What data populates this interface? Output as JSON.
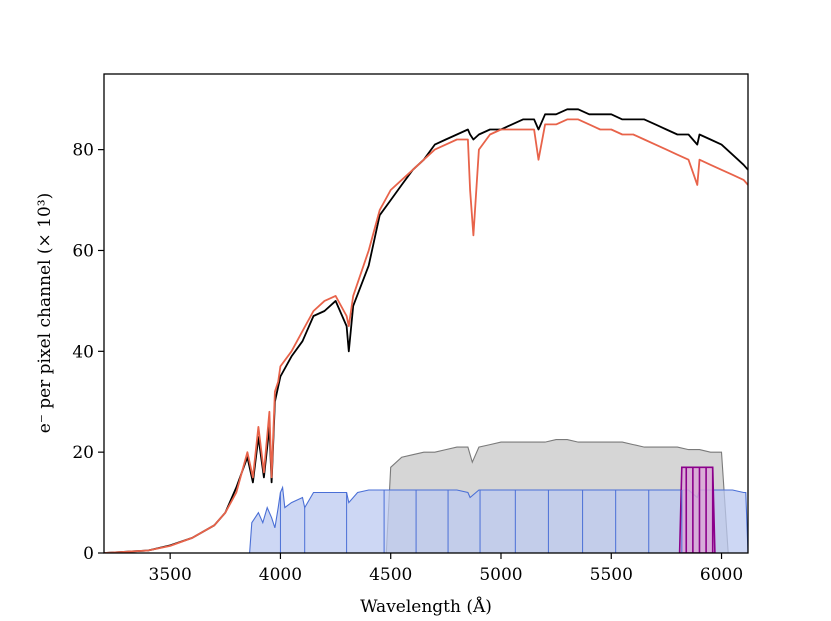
{
  "chart_data": {
    "type": "line",
    "xlabel": "Wavelength (Å)",
    "ylabel": "e⁻ per pixel channel (× 10³)",
    "xlim": [
      3200,
      6120
    ],
    "ylim": [
      0,
      95
    ],
    "x_ticks": [
      3500,
      4000,
      4500,
      5000,
      5500,
      6000
    ],
    "y_ticks": [
      0,
      20,
      40,
      60,
      80
    ],
    "grid": false,
    "colors": {
      "black_line": "#000000",
      "red_line": "#e8634a",
      "blue_fill": "#bcc9f0",
      "blue_edge": "#4a6fd6",
      "gray_fill": "#d2d2d2",
      "gray_edge": "#7a7a7a",
      "purple_fill": "#d9a6d6",
      "purple_edge": "#8b008b"
    },
    "series": [
      {
        "key": "black_line",
        "x": [
          3200,
          3400,
          3500,
          3600,
          3700,
          3750,
          3800,
          3850,
          3875,
          3900,
          3925,
          3950,
          3960,
          3975,
          3990,
          4000,
          4050,
          4100,
          4150,
          4200,
          4250,
          4300,
          4310,
          4330,
          4400,
          4450,
          4500,
          4550,
          4600,
          4650,
          4700,
          4750,
          4800,
          4850,
          4860,
          4875,
          4900,
          4950,
          5000,
          5050,
          5100,
          5150,
          5170,
          5200,
          5250,
          5300,
          5350,
          5400,
          5450,
          5500,
          5550,
          5600,
          5650,
          5700,
          5750,
          5800,
          5850,
          5890,
          5900,
          5950,
          6000,
          6050,
          6100,
          6120
        ],
        "y": [
          0,
          0.5,
          1.5,
          3,
          5.5,
          8,
          13,
          19,
          14,
          23,
          15,
          25,
          14,
          30,
          33,
          35,
          39,
          42,
          47,
          48,
          50,
          45,
          40,
          49,
          57,
          67,
          70,
          73,
          76,
          78,
          81,
          82,
          83,
          84,
          83,
          82,
          83,
          84,
          84,
          85,
          86,
          86,
          84,
          87,
          87,
          88,
          88,
          87,
          87,
          87,
          86,
          86,
          86,
          85,
          84,
          83,
          83,
          81,
          83,
          82,
          81,
          79,
          77,
          76
        ]
      },
      {
        "key": "red_line",
        "x": [
          3200,
          3400,
          3500,
          3600,
          3700,
          3750,
          3800,
          3850,
          3875,
          3900,
          3925,
          3950,
          3960,
          3975,
          3990,
          4000,
          4050,
          4100,
          4150,
          4200,
          4250,
          4300,
          4310,
          4330,
          4400,
          4450,
          4500,
          4550,
          4600,
          4650,
          4700,
          4750,
          4800,
          4850,
          4860,
          4875,
          4900,
          4950,
          5000,
          5050,
          5100,
          5150,
          5170,
          5200,
          5250,
          5300,
          5350,
          5400,
          5450,
          5500,
          5550,
          5600,
          5650,
          5700,
          5750,
          5800,
          5850,
          5890,
          5900,
          5950,
          6000,
          6050,
          6100,
          6120
        ],
        "y": [
          0,
          0.5,
          1.4,
          3,
          5.5,
          8,
          12,
          20,
          15,
          25,
          16,
          28,
          15,
          32,
          34,
          37,
          40,
          44,
          48,
          50,
          51,
          47,
          45,
          51,
          60,
          68,
          72,
          74,
          76,
          78,
          80,
          81,
          82,
          82,
          72,
          63,
          80,
          83,
          84,
          84,
          84,
          84,
          78,
          85,
          85,
          86,
          86,
          85,
          84,
          84,
          83,
          83,
          82,
          81,
          80,
          79,
          78,
          73,
          78,
          77,
          76,
          75,
          74,
          73
        ]
      }
    ],
    "fills": [
      {
        "key": "gray",
        "x": [
          4480,
          4500,
          4550,
          4600,
          4650,
          4700,
          4750,
          4800,
          4850,
          4870,
          4900,
          4950,
          5000,
          5050,
          5100,
          5150,
          5200,
          5250,
          5300,
          5350,
          5400,
          5450,
          5500,
          5550,
          5600,
          5650,
          5700,
          5750,
          5800,
          5850,
          5900,
          5950,
          6000,
          6030
        ],
        "y": [
          0,
          17,
          19,
          19.5,
          20,
          20,
          20.5,
          21,
          21,
          18,
          21,
          21.5,
          22,
          22,
          22,
          22,
          22,
          22.5,
          22.5,
          22,
          22,
          22,
          22,
          22,
          21.5,
          21,
          21,
          21,
          21,
          20.5,
          20.5,
          20,
          20,
          0
        ]
      },
      {
        "key": "blue",
        "x": [
          3860,
          3870,
          3900,
          3920,
          3940,
          3960,
          3975,
          3990,
          4000,
          4010,
          4020,
          4050,
          4100,
          4110,
          4150,
          4200,
          4250,
          4300,
          4310,
          4350,
          4400,
          4450,
          4500,
          4550,
          4600,
          4650,
          4700,
          4750,
          4800,
          4850,
          4860,
          4900,
          4950,
          5000,
          5050,
          5100,
          5150,
          5200,
          5250,
          5300,
          5350,
          5400,
          5450,
          5500,
          5550,
          5600,
          5650,
          5700,
          5750,
          5800,
          5850,
          5890,
          5900,
          5950,
          6000,
          6050,
          6100,
          6110,
          6120
        ],
        "y": [
          0,
          6,
          8,
          6,
          9,
          7,
          5,
          9,
          12,
          13,
          9,
          10,
          11,
          9,
          12,
          12,
          12,
          12,
          10,
          12,
          12.5,
          12.5,
          12.5,
          12.5,
          12.5,
          12.5,
          12.5,
          12.5,
          12.5,
          12,
          11,
          12.5,
          12.5,
          12.5,
          12.5,
          12.5,
          12.5,
          12.5,
          12.5,
          12.5,
          12.5,
          12.5,
          12.5,
          12.5,
          12.5,
          12.5,
          12.5,
          12.5,
          12.5,
          12.5,
          12.5,
          11,
          12.5,
          12.5,
          12.5,
          12.5,
          12,
          12,
          0
        ]
      },
      {
        "key": "purple",
        "x": [
          5810,
          5820,
          5960,
          5970
        ],
        "y": [
          0,
          17,
          17,
          0
        ]
      }
    ],
    "blue_dividers": [
      3860,
      4000,
      4110,
      4300,
      4470,
      4615,
      4760,
      4905,
      5065,
      5215,
      5370,
      5520,
      5670,
      5820
    ],
    "purple_dividers": [
      5840,
      5870,
      5900,
      5930,
      5960
    ]
  }
}
